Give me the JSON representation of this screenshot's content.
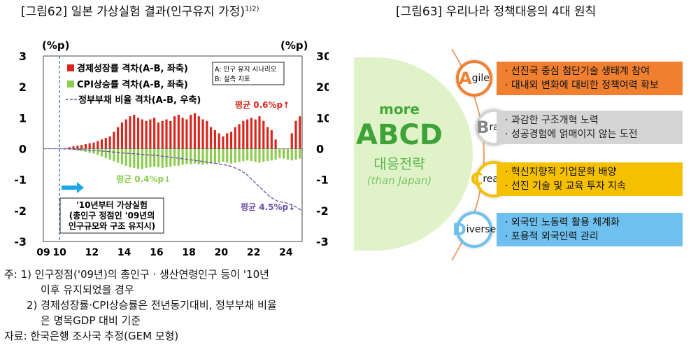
{
  "fig62": {
    "title": "[그림62] 일본 가상실험 결과(인구유지 가정)",
    "title_sup": "1)2)"
  },
  "fig63": {
    "title": "[그림63] 우리나라 정책대응의 4대 원칙"
  },
  "colors": {
    "gdp": "#d9261c",
    "cpi": "#8ccc4e",
    "debt": "#6b4fa8",
    "dashed": "#1a6eb5",
    "arrow": "#1ca7e8"
  },
  "chart_data": {
    "type": "bar",
    "left_unit": "(%p)",
    "right_unit": "(%p)",
    "ylim_left": [
      -3,
      3
    ],
    "ylim_right": [
      -30,
      30
    ],
    "yticks_left": [
      "3",
      "2",
      "1",
      "0",
      "-1",
      "-2",
      "-3"
    ],
    "yticks_right": [
      "30",
      "20",
      "10",
      "0",
      "-10",
      "-20",
      "-30"
    ],
    "xlim": [
      2009,
      2025
    ],
    "xticks": [
      "09",
      "10",
      "12",
      "14",
      "16",
      "18",
      "20",
      "22",
      "24"
    ],
    "legend": {
      "gdp": "경제성장률 격차(A-B, 좌축)",
      "cpi": "CPI상승률 격차(A-B, 좌축)",
      "debt": "정부부채 비율 격차(A-B, 우축)"
    },
    "legend_box": {
      "line1": "A: 인구 유지 시나리오",
      "line2": "B: 실측 지표"
    },
    "annotations": {
      "gdp_avg": "평균 0.6%p↑",
      "cpi_avg": "평균 0.4%p↓",
      "debt_avg": "평균 4.5%p↓",
      "scenario_line1": "'10년부터 가상실험",
      "scenario_line2": "(총인구 정점인 '09년의",
      "scenario_line3": "인구규모와 구조 유지시)"
    },
    "series": [
      {
        "name": "경제성장률 격차(A-B, 좌축)",
        "axis": "left",
        "x": [
          2010.0,
          2010.25,
          2010.5,
          2010.75,
          2011.0,
          2011.25,
          2011.5,
          2011.75,
          2012.0,
          2012.25,
          2012.5,
          2012.75,
          2013.0,
          2013.25,
          2013.5,
          2013.75,
          2014.0,
          2014.25,
          2014.5,
          2014.75,
          2015.0,
          2015.25,
          2015.5,
          2015.75,
          2016.0,
          2016.25,
          2016.5,
          2016.75,
          2017.0,
          2017.25,
          2017.5,
          2017.75,
          2018.0,
          2018.25,
          2018.5,
          2018.75,
          2019.0,
          2019.25,
          2019.5,
          2019.75,
          2020.0,
          2020.25,
          2020.5,
          2020.75,
          2021.0,
          2021.25,
          2021.5,
          2021.75,
          2022.0,
          2022.25,
          2022.5,
          2022.75,
          2023.0,
          2023.25,
          2023.5,
          2023.75,
          2024.0,
          2024.25,
          2024.5,
          2024.75
        ],
        "values": [
          0.0,
          0.02,
          0.05,
          0.08,
          0.1,
          0.12,
          0.15,
          0.18,
          0.2,
          0.25,
          0.3,
          0.35,
          0.4,
          0.55,
          0.7,
          0.85,
          0.95,
          1.05,
          1.1,
          1.0,
          0.95,
          0.9,
          0.95,
          1.0,
          0.85,
          0.9,
          0.95,
          0.9,
          1.05,
          1.1,
          1.0,
          0.95,
          1.1,
          1.15,
          1.05,
          0.95,
          0.9,
          0.7,
          0.6,
          0.5,
          0.4,
          0.5,
          0.55,
          0.7,
          0.8,
          0.9,
          0.95,
          1.0,
          0.95,
          1.05,
          0.9,
          0.7,
          0.6,
          0.3,
          -0.1,
          -0.2,
          0.0,
          0.5,
          0.9,
          1.05
        ]
      },
      {
        "name": "CPI상승률 격차(A-B, 좌축)",
        "axis": "left",
        "x": [
          2010.0,
          2010.25,
          2010.5,
          2010.75,
          2011.0,
          2011.25,
          2011.5,
          2011.75,
          2012.0,
          2012.25,
          2012.5,
          2012.75,
          2013.0,
          2013.25,
          2013.5,
          2013.75,
          2014.0,
          2014.25,
          2014.5,
          2014.75,
          2015.0,
          2015.25,
          2015.5,
          2015.75,
          2016.0,
          2016.25,
          2016.5,
          2016.75,
          2017.0,
          2017.25,
          2017.5,
          2017.75,
          2018.0,
          2018.25,
          2018.5,
          2018.75,
          2019.0,
          2019.25,
          2019.5,
          2019.75,
          2020.0,
          2020.25,
          2020.5,
          2020.75,
          2021.0,
          2021.25,
          2021.5,
          2021.75,
          2022.0,
          2022.25,
          2022.5,
          2022.75,
          2023.0,
          2023.25,
          2023.5,
          2023.75,
          2024.0,
          2024.25,
          2024.5,
          2024.75
        ],
        "values": [
          0.0,
          -0.01,
          -0.02,
          -0.04,
          -0.06,
          -0.08,
          -0.1,
          -0.13,
          -0.16,
          -0.2,
          -0.25,
          -0.3,
          -0.35,
          -0.4,
          -0.45,
          -0.5,
          -0.55,
          -0.6,
          -0.62,
          -0.65,
          -0.65,
          -0.62,
          -0.6,
          -0.58,
          -0.6,
          -0.62,
          -0.6,
          -0.58,
          -0.55,
          -0.55,
          -0.52,
          -0.5,
          -0.5,
          -0.48,
          -0.5,
          -0.52,
          -0.5,
          -0.48,
          -0.45,
          -0.45,
          -0.42,
          -0.45,
          -0.48,
          -0.45,
          -0.42,
          -0.4,
          -0.38,
          -0.4,
          -0.42,
          -0.45,
          -0.42,
          -0.4,
          -0.38,
          -0.35,
          -0.3,
          -0.32,
          -0.35,
          -0.38,
          -0.35,
          -0.32
        ]
      },
      {
        "name": "정부부채 비율 격차(A-B, 우축)",
        "axis": "right",
        "x": [
          2009.0,
          2010.0,
          2011.0,
          2012.0,
          2013.0,
          2014.0,
          2015.0,
          2016.0,
          2017.0,
          2018.0,
          2019.0,
          2020.0,
          2020.5,
          2021.0,
          2021.5,
          2022.0,
          2022.5,
          2023.0,
          2023.5,
          2024.0,
          2024.5,
          2025.0
        ],
        "values": [
          0.0,
          0.0,
          -0.2,
          -0.5,
          -0.9,
          -1.4,
          -1.8,
          -2.2,
          -2.8,
          -3.5,
          -4.2,
          -5.0,
          -5.5,
          -6.5,
          -8.0,
          -10.5,
          -13.0,
          -15.5,
          -17.0,
          -17.5,
          -18.5,
          -20.0
        ]
      }
    ]
  },
  "notes": {
    "n1_line1": "주: 1) 인구정점('09년)의 총인구 · 생산연령인구 등이 '10년",
    "n1_line2": "이후 유지되었을 경우",
    "n2_line1": "2) 경제성장률·CPI상승률은 전년동기대비, 정부부채 비율",
    "n2_line2": "은 명목GDP 대비 기준",
    "source": "자료: 한국은행 조사국 추정(GEM 모형)"
  },
  "principles": {
    "more": "more",
    "abcd": "ABCD",
    "strategy": "대응전략",
    "than": "(than Japan)",
    "items": [
      {
        "key": "agile",
        "letter": "A",
        "rest": "gile",
        "color": "#f08030",
        "line1": "· 선진국 중심 첨단기술 생태계 참여",
        "line2": "· 대내외 변화에 대비한 정책여력 확보"
      },
      {
        "key": "brave",
        "letter": "B",
        "rest": "rave",
        "color": "#d4d4d4",
        "line1": "· 과감한 구조개혁 노력",
        "line2": "· 성공경험에 얽매이지 않는 도전"
      },
      {
        "key": "creative",
        "letter": "C",
        "rest": "reative",
        "color": "#f5c000",
        "line1": "· 혁신지향적 기업문화 배양",
        "line2": "· 선진 기술 및 교육 투자 지속"
      },
      {
        "key": "diverse",
        "letter": "D",
        "rest": "iverse",
        "color": "#6ec0ee",
        "line1": "· 외국인 노동력 활용 체계화",
        "line2": "· 포용적 외국인력 관리"
      }
    ]
  }
}
